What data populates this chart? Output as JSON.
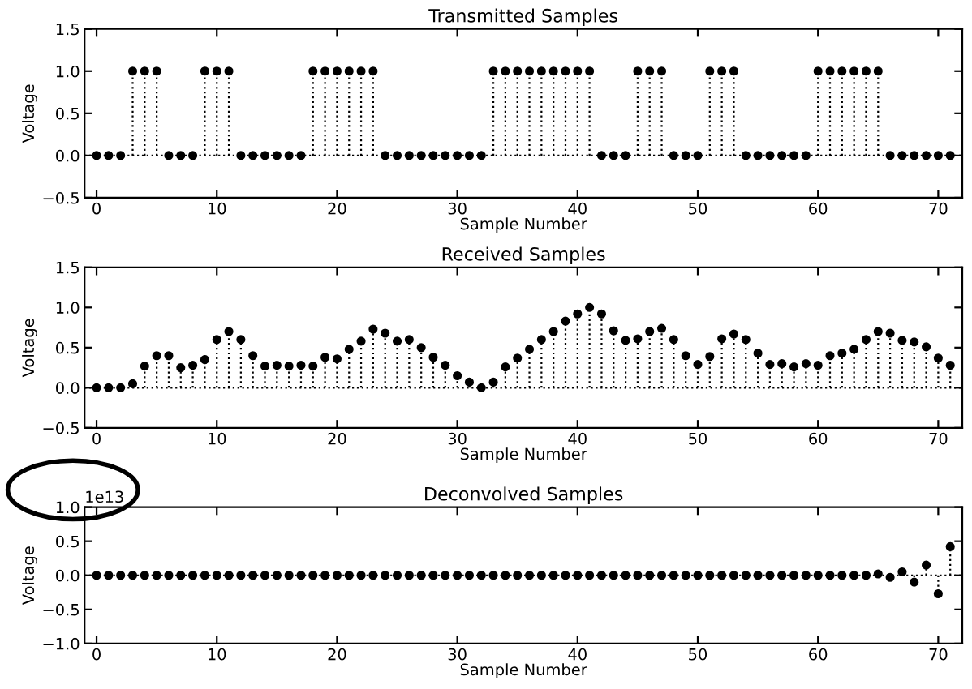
{
  "chart_data": [
    {
      "type": "lollipop",
      "title": "Transmitted Samples",
      "xlabel": "Sample Number",
      "ylabel": "Voltage",
      "marker": "circle",
      "line_style": "dotted",
      "grid": false,
      "legend": false,
      "x": [
        0,
        1,
        2,
        3,
        4,
        5,
        6,
        7,
        8,
        9,
        10,
        11,
        12,
        13,
        14,
        15,
        16,
        17,
        18,
        19,
        20,
        21,
        22,
        23,
        24,
        25,
        26,
        27,
        28,
        29,
        30,
        31,
        32,
        33,
        34,
        35,
        36,
        37,
        38,
        39,
        40,
        41,
        42,
        43,
        44,
        45,
        46,
        47,
        48,
        49,
        50,
        51,
        52,
        53,
        54,
        55,
        56,
        57,
        58,
        59,
        60,
        61,
        62,
        63,
        64,
        65,
        66,
        67,
        68,
        69,
        70,
        71
      ],
      "ref_lines": [
        {
          "axis": "y",
          "value": 0,
          "line_style": "dotted",
          "color": "#000000"
        }
      ],
      "series": [
        {
          "color": "#000000",
          "values": [
            0,
            0,
            0,
            1,
            1,
            1,
            0,
            0,
            0,
            1,
            1,
            1,
            0,
            0,
            0,
            0,
            0,
            0,
            1,
            1,
            1,
            1,
            1,
            1,
            0,
            0,
            0,
            0,
            0,
            0,
            0,
            0,
            0,
            1,
            1,
            1,
            1,
            1,
            1,
            1,
            1,
            1,
            0,
            0,
            0,
            1,
            1,
            1,
            0,
            0,
            0,
            1,
            1,
            1,
            0,
            0,
            0,
            0,
            0,
            0,
            1,
            1,
            1,
            1,
            1,
            1,
            0,
            0,
            0,
            0,
            0,
            0
          ]
        }
      ],
      "xlim": [
        -1,
        72
      ],
      "xticks": [
        0,
        10,
        20,
        30,
        40,
        50,
        60,
        70
      ],
      "ylim": [
        -0.5,
        1.5
      ],
      "yticks": [
        {
          "value": -0.5,
          "label": "−0.5"
        },
        {
          "value": 0,
          "label": "0.0"
        },
        {
          "value": 0.5,
          "label": "0.5"
        },
        {
          "value": 1,
          "label": "1.0"
        },
        {
          "value": 1.5,
          "label": "1.5"
        }
      ]
    },
    {
      "type": "lollipop",
      "title": "Received Samples",
      "xlabel": "Sample Number",
      "ylabel": "Voltage",
      "marker": "circle",
      "line_style": "dotted",
      "grid": false,
      "legend": false,
      "x": [
        0,
        1,
        2,
        3,
        4,
        5,
        6,
        7,
        8,
        9,
        10,
        11,
        12,
        13,
        14,
        15,
        16,
        17,
        18,
        19,
        20,
        21,
        22,
        23,
        24,
        25,
        26,
        27,
        28,
        29,
        30,
        31,
        32,
        33,
        34,
        35,
        36,
        37,
        38,
        39,
        40,
        41,
        42,
        43,
        44,
        45,
        46,
        47,
        48,
        49,
        50,
        51,
        52,
        53,
        54,
        55,
        56,
        57,
        58,
        59,
        60,
        61,
        62,
        63,
        64,
        65,
        66,
        67,
        68,
        69,
        70,
        71
      ],
      "ref_lines": [
        {
          "axis": "y",
          "value": 0,
          "line_style": "dotted",
          "color": "#000000"
        }
      ],
      "series": [
        {
          "color": "#000000",
          "values": [
            0,
            0,
            0,
            0.05,
            0.27,
            0.4,
            0.4,
            0.25,
            0.28,
            0.35,
            0.6,
            0.7,
            0.6,
            0.4,
            0.27,
            0.28,
            0.27,
            0.28,
            0.27,
            0.38,
            0.36,
            0.48,
            0.58,
            0.73,
            0.68,
            0.58,
            0.6,
            0.5,
            0.38,
            0.28,
            0.15,
            0.07,
            0,
            0.07,
            0.26,
            0.37,
            0.48,
            0.6,
            0.7,
            0.83,
            0.92,
            1.0,
            0.92,
            0.71,
            0.59,
            0.61,
            0.7,
            0.74,
            0.6,
            0.4,
            0.29,
            0.39,
            0.61,
            0.67,
            0.6,
            0.43,
            0.29,
            0.3,
            0.26,
            0.3,
            0.28,
            0.4,
            0.43,
            0.48,
            0.6,
            0.7,
            0.68,
            0.59,
            0.57,
            0.51,
            0.37,
            0.28
          ]
        }
      ],
      "xlim": [
        -1,
        72
      ],
      "xticks": [
        0,
        10,
        20,
        30,
        40,
        50,
        60,
        70
      ],
      "ylim": [
        -0.5,
        1.5
      ],
      "yticks": [
        {
          "value": -0.5,
          "label": "−0.5"
        },
        {
          "value": 0,
          "label": "0.0"
        },
        {
          "value": 0.5,
          "label": "0.5"
        },
        {
          "value": 1,
          "label": "1.0"
        },
        {
          "value": 1.5,
          "label": "1.5"
        }
      ]
    },
    {
      "type": "lollipop",
      "title": "Deconvolved Samples",
      "xlabel": "Sample Number",
      "ylabel": "Voltage",
      "marker": "circle",
      "line_style": "dotted",
      "grid": false,
      "legend": false,
      "annotations": [
        "1e13"
      ],
      "x": [
        0,
        1,
        2,
        3,
        4,
        5,
        6,
        7,
        8,
        9,
        10,
        11,
        12,
        13,
        14,
        15,
        16,
        17,
        18,
        19,
        20,
        21,
        22,
        23,
        24,
        25,
        26,
        27,
        28,
        29,
        30,
        31,
        32,
        33,
        34,
        35,
        36,
        37,
        38,
        39,
        40,
        41,
        42,
        43,
        44,
        45,
        46,
        47,
        48,
        49,
        50,
        51,
        52,
        53,
        54,
        55,
        56,
        57,
        58,
        59,
        60,
        61,
        62,
        63,
        64,
        65,
        66,
        67,
        68,
        69,
        70,
        71
      ],
      "series": [
        {
          "color": "#000000",
          "values": [
            0,
            0,
            0,
            0,
            0,
            0,
            0,
            0,
            0,
            0,
            0,
            0,
            0,
            0,
            0,
            0,
            0,
            0,
            0,
            0,
            0,
            0,
            0,
            0,
            0,
            0,
            0,
            0,
            0,
            0,
            0,
            0,
            0,
            0,
            0,
            0,
            0,
            0,
            0,
            0,
            0,
            0,
            0,
            0,
            0,
            0,
            0,
            0,
            0,
            0,
            0,
            0,
            0,
            0,
            0,
            0,
            0,
            0,
            0,
            0,
            0,
            0,
            0,
            0,
            0,
            0.02,
            -0.03,
            0.05,
            -0.1,
            0.15,
            -0.27,
            0.42
          ]
        }
      ],
      "ref_lines": [
        {
          "axis": "y",
          "value": 0,
          "line_style": "dotted",
          "color": "#000000"
        }
      ],
      "xlim": [
        -1,
        72
      ],
      "xticks": [
        0,
        10,
        20,
        30,
        40,
        50,
        60,
        70
      ],
      "ylim": [
        -1,
        1
      ],
      "yticks": [
        {
          "value": -1,
          "label": "−1.0"
        },
        {
          "value": -0.5,
          "label": "−0.5"
        },
        {
          "value": 0,
          "label": "0.0"
        },
        {
          "value": 0.5,
          "label": "0.5"
        },
        {
          "value": 1,
          "label": "1.0"
        }
      ]
    }
  ]
}
